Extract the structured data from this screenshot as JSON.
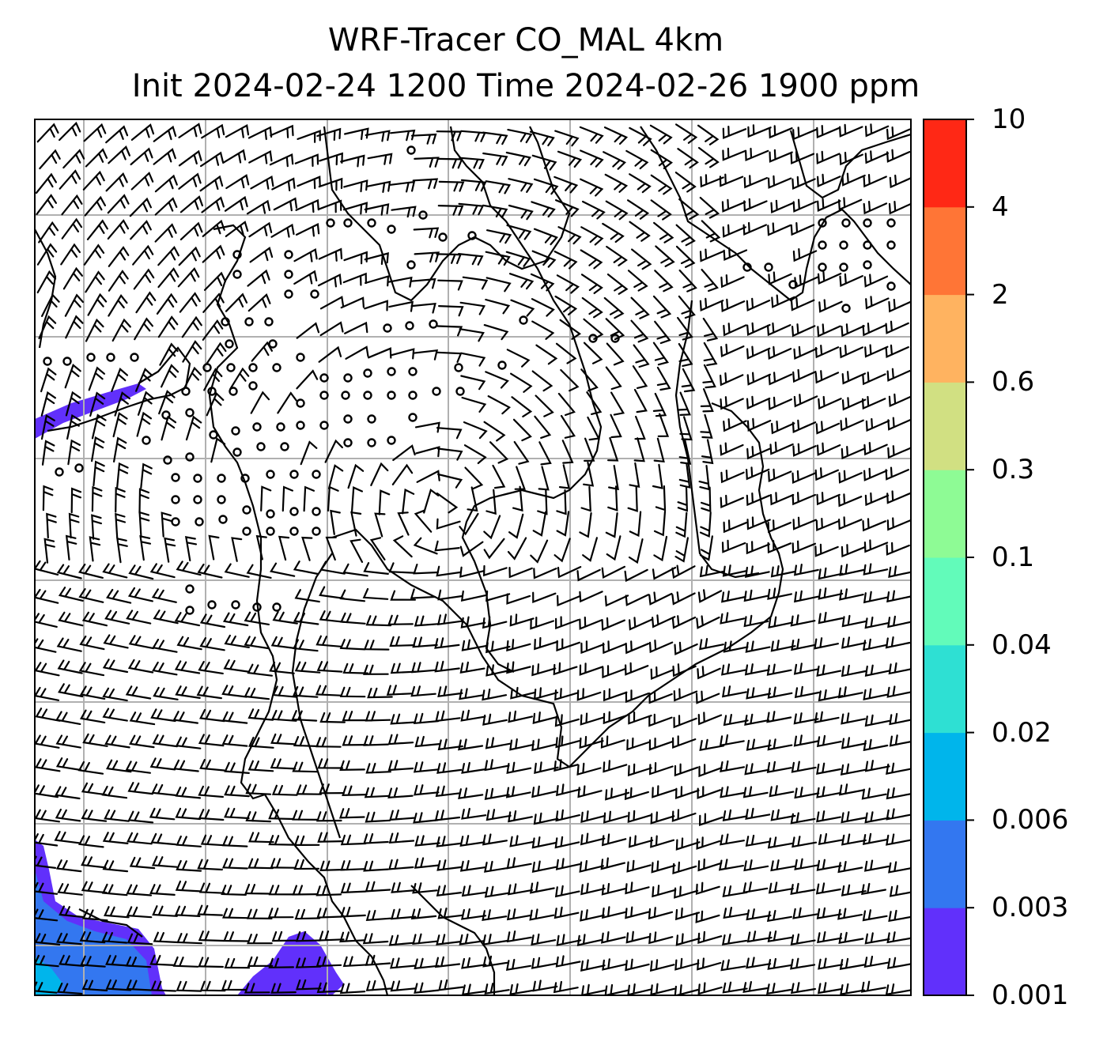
{
  "title": {
    "line1": "WRF-Tracer CO_MAL 4km",
    "line2": "Init 2024-02-24 1200 Time 2024-02-26 1900 ppm"
  },
  "colorbar": {
    "levels": [
      "0.001",
      "0.003",
      "0.006",
      "0.02",
      "0.04",
      "0.1",
      "0.3",
      "0.6",
      "2",
      "4",
      "10"
    ],
    "colors": [
      "#6130fb",
      "#3377f0",
      "#00b5eb",
      "#2ee0d3",
      "#62fbba",
      "#8efb95",
      "#d1e082",
      "#ffb360",
      "#ff7536",
      "#ff2815"
    ]
  },
  "map": {
    "gridlines": true,
    "wind_barbs": true,
    "tracer_fill_color": "#6130fb",
    "tracer_fill_dense_color": "#3377f0",
    "tracer_fill_core_color": "#00b5eb"
  }
}
